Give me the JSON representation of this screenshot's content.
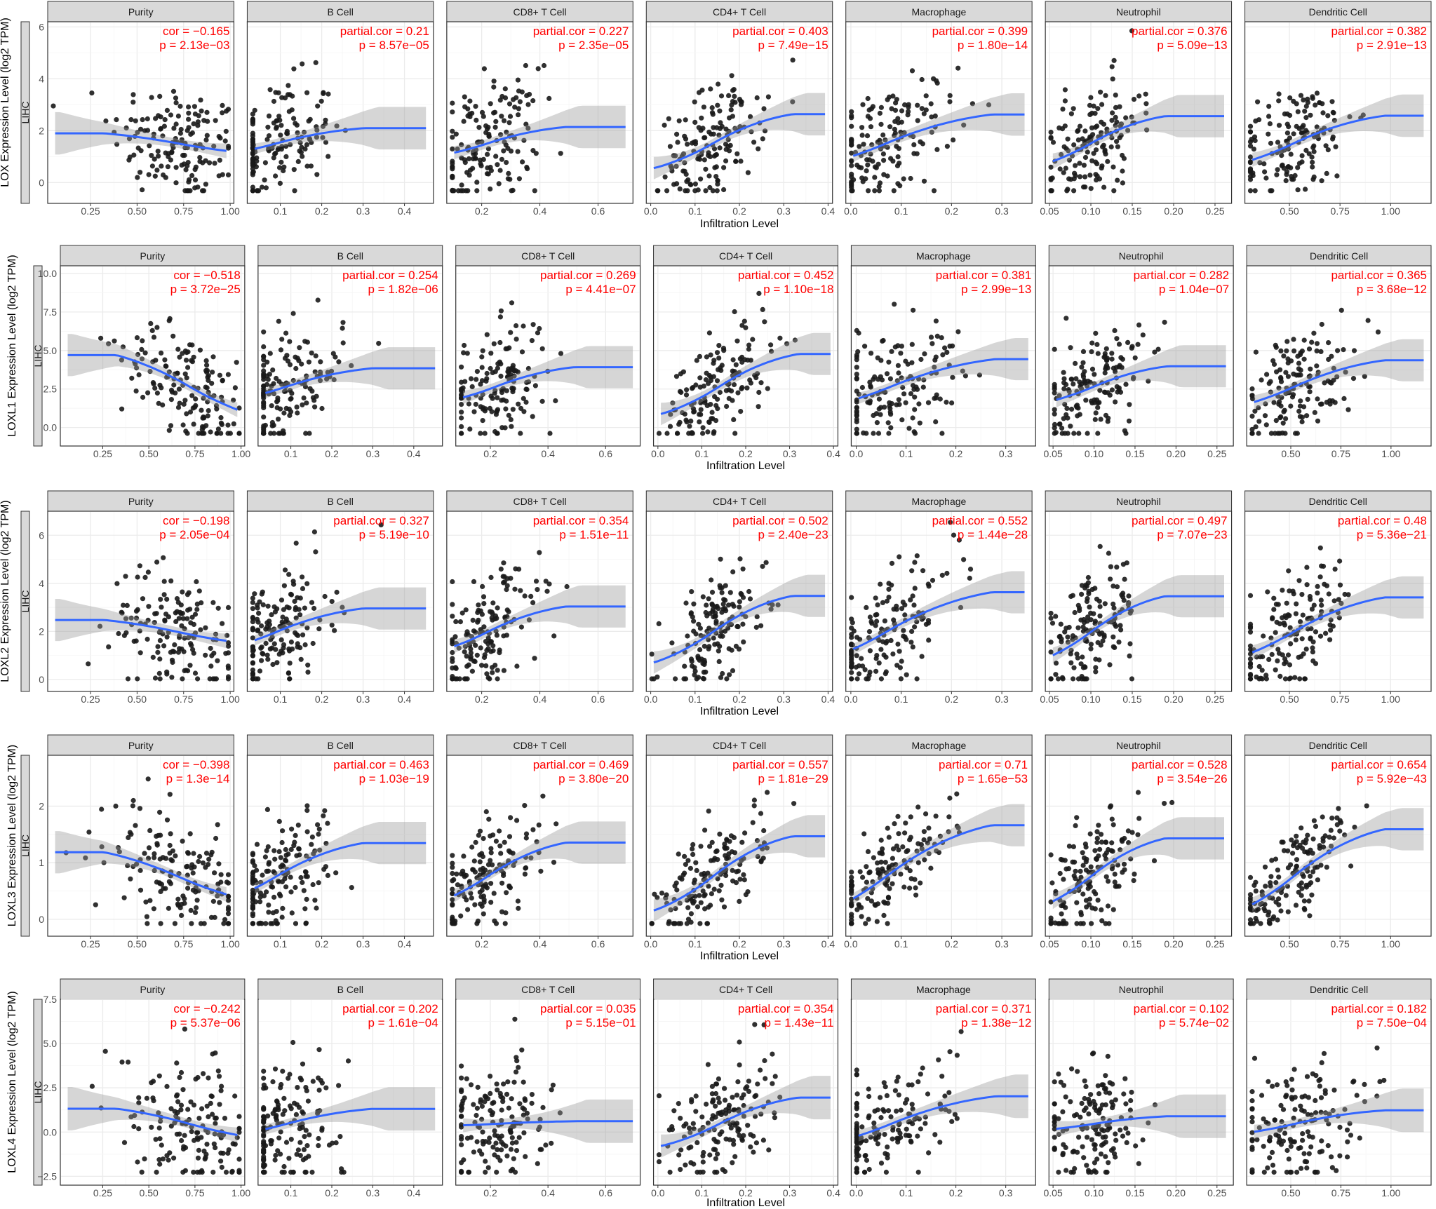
{
  "chart_data": {
    "type": "scatter",
    "cancer_label": "LIHC",
    "xlabel": "Infiltration Level",
    "columns": [
      {
        "name": "Purity",
        "xlim": [
          0.02,
          1.02
        ],
        "xticks": [
          "0.25",
          "0.50",
          "0.75",
          "1.00"
        ],
        "xtick_values": [
          0.25,
          0.5,
          0.75,
          1.0
        ]
      },
      {
        "name": "B Cell",
        "xlim": [
          0.02,
          0.47
        ],
        "xticks": [
          "0.1",
          "0.2",
          "0.3",
          "0.4"
        ],
        "xtick_values": [
          0.1,
          0.2,
          0.3,
          0.4
        ]
      },
      {
        "name": "CD8+ T Cell",
        "xlim": [
          0.08,
          0.72
        ],
        "xticks": [
          "0.2",
          "0.4",
          "0.6"
        ],
        "xtick_values": [
          0.2,
          0.4,
          0.6
        ]
      },
      {
        "name": "CD4+ T Cell",
        "xlim": [
          -0.01,
          0.41
        ],
        "xticks": [
          "0.0",
          "0.1",
          "0.2",
          "0.3",
          "0.4"
        ],
        "xtick_values": [
          0.0,
          0.1,
          0.2,
          0.3,
          0.4
        ]
      },
      {
        "name": "Macrophage",
        "xlim": [
          -0.01,
          0.36
        ],
        "xticks": [
          "0.0",
          "0.1",
          "0.2",
          "0.3"
        ],
        "xtick_values": [
          0.0,
          0.1,
          0.2,
          0.3
        ]
      },
      {
        "name": "Neutrophil",
        "xlim": [
          0.045,
          0.27
        ],
        "xticks": [
          "0.05",
          "0.10",
          "0.15",
          "0.20",
          "0.25"
        ],
        "xtick_values": [
          0.05,
          0.1,
          0.15,
          0.2,
          0.25
        ]
      },
      {
        "name": "Dendritic Cell",
        "xlim": [
          0.28,
          1.2
        ],
        "xticks": [
          "0.50",
          "0.75",
          "1.00"
        ],
        "xtick_values": [
          0.5,
          0.75,
          1.0
        ]
      }
    ],
    "rows": [
      {
        "gene": "LOX",
        "ylabel": "LOX Expression Level (log2 TPM)",
        "ylim": [
          -0.8,
          6.2
        ],
        "yticks": [
          "0",
          "2",
          "4",
          "6"
        ],
        "ytick_values": [
          0,
          2,
          4,
          6
        ],
        "stats": [
          {
            "cor": "cor = −0.165",
            "p": "p = 2.13e−03",
            "r": -0.165
          },
          {
            "cor": "partial.cor = 0.21",
            "p": "p = 8.57e−05",
            "r": 0.21
          },
          {
            "cor": "partial.cor = 0.227",
            "p": "p = 2.35e−05",
            "r": 0.227
          },
          {
            "cor": "partial.cor = 0.403",
            "p": "p = 7.49e−15",
            "r": 0.403
          },
          {
            "cor": "partial.cor = 0.399",
            "p": "p = 1.80e−14",
            "r": 0.399
          },
          {
            "cor": "partial.cor = 0.376",
            "p": "p = 5.09e−13",
            "r": 0.376
          },
          {
            "cor": "partial.cor = 0.382",
            "p": "p = 2.91e−13",
            "r": 0.382
          }
        ]
      },
      {
        "gene": "LOXL1",
        "ylabel": "LOXL1 Expression Level (log2 TPM)",
        "ylim": [
          -1.2,
          10.5
        ],
        "yticks": [
          "0.0",
          "2.5",
          "5.0",
          "7.5",
          "10.0"
        ],
        "ytick_values": [
          0,
          2.5,
          5,
          7.5,
          10
        ],
        "stats": [
          {
            "cor": "cor = −0.518",
            "p": "p = 3.72e−25",
            "r": -0.518
          },
          {
            "cor": "partial.cor = 0.254",
            "p": "p = 1.82e−06",
            "r": 0.254
          },
          {
            "cor": "partial.cor = 0.269",
            "p": "p = 4.41e−07",
            "r": 0.269
          },
          {
            "cor": "partial.cor = 0.452",
            "p": "p = 1.10e−18",
            "r": 0.452
          },
          {
            "cor": "partial.cor = 0.381",
            "p": "p = 2.99e−13",
            "r": 0.381
          },
          {
            "cor": "partial.cor = 0.282",
            "p": "p = 1.04e−07",
            "r": 0.282
          },
          {
            "cor": "partial.cor = 0.365",
            "p": "p = 3.68e−12",
            "r": 0.365
          }
        ]
      },
      {
        "gene": "LOXL2",
        "ylabel": "LOXL2 Expression Level (log2 TPM)",
        "ylim": [
          -0.5,
          7.0
        ],
        "yticks": [
          "0",
          "2",
          "4",
          "6"
        ],
        "ytick_values": [
          0,
          2,
          4,
          6
        ],
        "stats": [
          {
            "cor": "cor = −0.198",
            "p": "p = 2.05e−04",
            "r": -0.198
          },
          {
            "cor": "partial.cor = 0.327",
            "p": "p = 5.19e−10",
            "r": 0.327
          },
          {
            "cor": "partial.cor = 0.354",
            "p": "p = 1.51e−11",
            "r": 0.354
          },
          {
            "cor": "partial.cor = 0.502",
            "p": "p = 2.40e−23",
            "r": 0.502
          },
          {
            "cor": "partial.cor = 0.552",
            "p": "p = 1.44e−28",
            "r": 0.552
          },
          {
            "cor": "partial.cor = 0.497",
            "p": "p = 7.07e−23",
            "r": 0.497
          },
          {
            "cor": "partial.cor = 0.48",
            "p": "p = 5.36e−21",
            "r": 0.48
          }
        ]
      },
      {
        "gene": "LOXL3",
        "ylabel": "LOXL3 Expression Level (log2 TPM)",
        "ylim": [
          -0.3,
          2.9
        ],
        "yticks": [
          "0",
          "1",
          "2"
        ],
        "ytick_values": [
          0,
          1,
          2
        ],
        "stats": [
          {
            "cor": "cor = −0.398",
            "p": "p = 1.3e−14",
            "r": -0.398
          },
          {
            "cor": "partial.cor = 0.463",
            "p": "p = 1.03e−19",
            "r": 0.463
          },
          {
            "cor": "partial.cor = 0.469",
            "p": "p = 3.80e−20",
            "r": 0.469
          },
          {
            "cor": "partial.cor = 0.557",
            "p": "p = 1.81e−29",
            "r": 0.557
          },
          {
            "cor": "partial.cor = 0.71",
            "p": "p = 1.65e−53",
            "r": 0.71
          },
          {
            "cor": "partial.cor = 0.528",
            "p": "p = 3.54e−26",
            "r": 0.528
          },
          {
            "cor": "partial.cor = 0.654",
            "p": "p = 5.92e−43",
            "r": 0.654
          }
        ]
      },
      {
        "gene": "LOXL4",
        "ylabel": "LOXL4 Expression Level (log2 TPM)",
        "ylim": [
          -3.0,
          7.5
        ],
        "yticks": [
          "−2.5",
          "0.0",
          "2.5",
          "5.0",
          "7.5"
        ],
        "ytick_values": [
          -2.5,
          0,
          2.5,
          5,
          7.5
        ],
        "stats": [
          {
            "cor": "cor = −0.242",
            "p": "p = 5.37e−06",
            "r": -0.242
          },
          {
            "cor": "partial.cor = 0.202",
            "p": "p = 1.61e−04",
            "r": 0.202
          },
          {
            "cor": "partial.cor = 0.035",
            "p": "p = 5.15e−01",
            "r": 0.035
          },
          {
            "cor": "partial.cor = 0.354",
            "p": "p = 1.43e−11",
            "r": 0.354
          },
          {
            "cor": "partial.cor = 0.371",
            "p": "p = 1.38e−12",
            "r": 0.371
          },
          {
            "cor": "partial.cor = 0.102",
            "p": "p = 5.74e−02",
            "r": 0.102
          },
          {
            "cor": "partial.cor = 0.182",
            "p": "p = 7.50e−04",
            "r": 0.182
          }
        ]
      }
    ],
    "grid": true,
    "point_color": "#1a1a1a",
    "fit_color": "#3366ff",
    "band_color": "#999999",
    "annotation_color": "#ff0000",
    "strip_color": "#d9d9d9"
  }
}
